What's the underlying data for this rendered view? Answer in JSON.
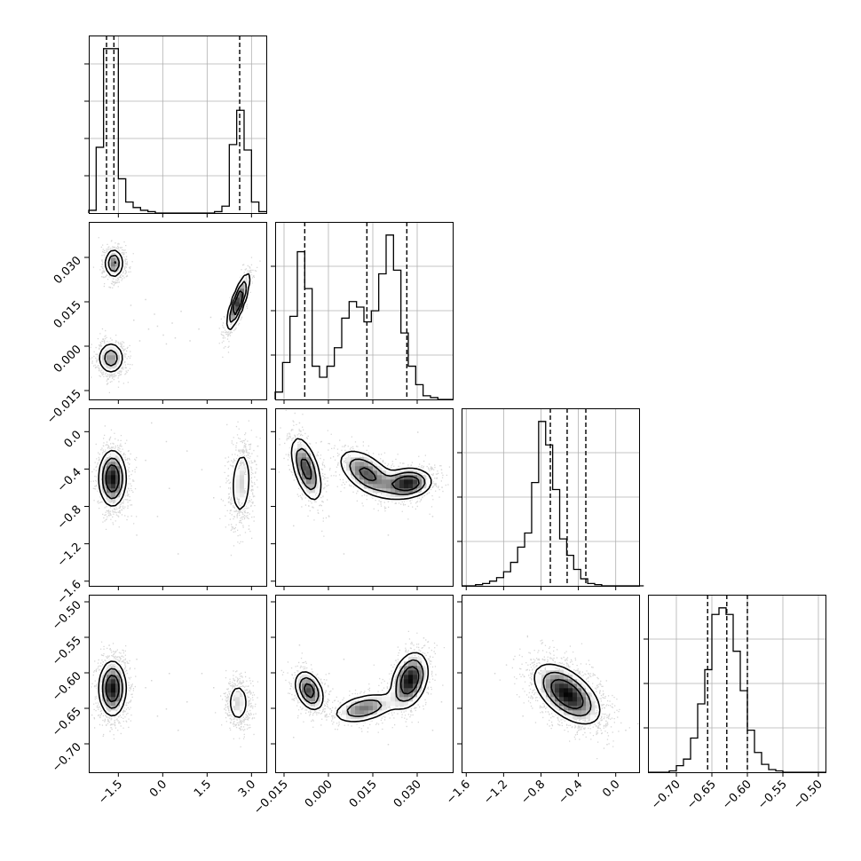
{
  "figure": {
    "type": "corner_plot",
    "n_params": 4,
    "background": "#ffffff"
  },
  "chart_data": [
    {
      "type": "histogram",
      "param": 0,
      "xlim": [
        -2.5,
        3.5
      ],
      "bins": {
        "start": -2.5,
        "width": 0.25,
        "counts": [
          2,
          48,
          120,
          120,
          25,
          8,
          4,
          2,
          1,
          0,
          0,
          0,
          0,
          0,
          0,
          0,
          0,
          1,
          5,
          50,
          75,
          46,
          8,
          1
        ]
      },
      "quantile_lines": [
        -1.9,
        -1.65,
        2.6
      ],
      "x_ticks": [
        -1.5,
        0.0,
        1.5,
        3.0
      ],
      "x_tick_labels": [
        "−1.5",
        "0.0",
        "1.5",
        "3.0"
      ],
      "y_tick_fracs": [
        0.21,
        0.42,
        0.63,
        0.84
      ],
      "grid": true
    },
    {
      "type": "histogram",
      "param": 1,
      "xlim": [
        -0.018,
        0.042
      ],
      "bins": {
        "start": -0.018,
        "width": 0.0025,
        "counts": [
          4,
          20,
          45,
          80,
          60,
          18,
          12,
          18,
          28,
          44,
          53,
          50,
          42,
          48,
          68,
          89,
          70,
          36,
          18,
          8,
          2,
          1,
          0,
          0
        ]
      },
      "quantile_lines": [
        -0.008,
        0.013,
        0.0265
      ],
      "x_ticks": [
        -0.015,
        0.0,
        0.015,
        0.03
      ],
      "x_tick_labels": [
        "−0.015",
        "0.000",
        "0.015",
        "0.030"
      ],
      "y_tick_fracs": [
        0.25,
        0.5,
        0.75
      ],
      "grid": true
    },
    {
      "type": "histogram",
      "param": 2,
      "xlim": [
        -1.65,
        0.25
      ],
      "bins": {
        "start": -1.65,
        "width": 0.075,
        "counts": [
          0,
          0,
          1,
          2,
          4,
          7,
          12,
          20,
          33,
          45,
          88,
          140,
          120,
          82,
          40,
          26,
          14,
          6,
          2,
          1,
          0,
          0,
          0,
          0,
          0,
          0
        ]
      },
      "quantile_lines": [
        -0.7,
        -0.52,
        -0.32
      ],
      "x_ticks": [
        -1.6,
        -1.2,
        -0.8,
        -0.4,
        0.0
      ],
      "x_tick_labels": [
        "−1.6",
        "−1.2",
        "−0.8",
        "−0.4",
        "0.0"
      ],
      "y_tick_fracs": [
        0.25,
        0.5,
        0.75
      ],
      "grid": true
    },
    {
      "type": "histogram",
      "param": 3,
      "xlim": [
        -0.74,
        -0.49
      ],
      "bins": {
        "start": -0.74,
        "width": 0.01,
        "counts": [
          0,
          0,
          0,
          1,
          5,
          10,
          26,
          52,
          78,
          120,
          125,
          120,
          92,
          62,
          32,
          15,
          6,
          2,
          1,
          0,
          0,
          0,
          0,
          0,
          0
        ]
      },
      "quantile_lines": [
        -0.656,
        -0.629,
        -0.6
      ],
      "x_ticks": [
        -0.7,
        -0.65,
        -0.6,
        -0.55,
        -0.5
      ],
      "x_tick_labels": [
        "−0.70",
        "−0.65",
        "−0.60",
        "−0.55",
        "−0.50"
      ],
      "y_tick_fracs": [
        0.25,
        0.5,
        0.75
      ],
      "grid": true
    },
    {
      "type": "scatter_density",
      "x_param": 0,
      "y_param": 1,
      "xlim": [
        -2.5,
        3.5
      ],
      "ylim": [
        -0.018,
        0.042
      ],
      "y_ticks": [
        -0.015,
        0.0,
        0.015,
        0.03
      ],
      "y_tick_labels": [
        "−0.015",
        "0.000",
        "0.015",
        "0.030"
      ],
      "clusters": [
        {
          "center": [
            -1.65,
            0.028
          ],
          "sigma": [
            0.18,
            0.0028
          ],
          "rho": 0.0,
          "weight": 0.38
        },
        {
          "center": [
            -1.75,
            -0.004
          ],
          "sigma": [
            0.26,
            0.0032
          ],
          "rho": 0.0,
          "weight": 0.32
        },
        {
          "center": [
            2.55,
            0.015
          ],
          "sigma": [
            0.22,
            0.0055
          ],
          "rho": 0.82,
          "weight": 0.3
        }
      ],
      "background_points": [
        [
          -0.5,
          0.006
        ],
        [
          0.0,
          0.004
        ],
        [
          0.3,
          0.008
        ],
        [
          -0.8,
          0.002
        ],
        [
          0.6,
          0.012
        ],
        [
          -1.0,
          0.009
        ],
        [
          1.2,
          0.006
        ],
        [
          -0.3,
          0.011
        ],
        [
          0.9,
          0.002
        ],
        [
          -1.1,
          0.014
        ],
        [
          0.1,
          0.001
        ],
        [
          1.6,
          0.01
        ],
        [
          -0.6,
          0.016
        ],
        [
          0.4,
          0.003
        ],
        [
          -0.2,
          0.007
        ]
      ]
    },
    {
      "type": "scatter_density",
      "x_param": 0,
      "y_param": 2,
      "xlim": [
        -2.5,
        3.5
      ],
      "ylim": [
        -1.65,
        0.25
      ],
      "y_ticks": [
        -1.6,
        -1.2,
        -0.8,
        -0.4,
        0.0
      ],
      "y_tick_labels": [
        "−1.6",
        "−1.2",
        "−0.8",
        "−0.4",
        "0.0"
      ],
      "clusters": [
        {
          "center": [
            -1.7,
            -0.5
          ],
          "sigma": [
            0.26,
            0.17
          ],
          "rho": 0.0,
          "weight": 0.7
        },
        {
          "center": [
            2.65,
            -0.55
          ],
          "sigma": [
            0.22,
            0.24
          ],
          "rho": 0.15,
          "weight": 0.3
        }
      ],
      "background_points": [
        [
          -0.6,
          -0.3
        ],
        [
          0.2,
          -0.6
        ],
        [
          0.8,
          -0.2
        ],
        [
          -0.2,
          -0.9
        ],
        [
          1.3,
          -0.4
        ],
        [
          -0.9,
          -1.1
        ],
        [
          0.5,
          -1.3
        ],
        [
          1.7,
          -0.7
        ],
        [
          -0.4,
          0.1
        ],
        [
          0.1,
          -0.1
        ]
      ]
    },
    {
      "type": "scatter_density",
      "x_param": 1,
      "y_param": 2,
      "xlim": [
        -0.018,
        0.042
      ],
      "ylim": [
        -1.65,
        0.25
      ],
      "clusters": [
        {
          "center": [
            -0.0075,
            -0.4
          ],
          "sigma": [
            0.003,
            0.2
          ],
          "rho": -0.55,
          "weight": 0.3
        },
        {
          "center": [
            0.013,
            -0.45
          ],
          "sigma": [
            0.0055,
            0.15
          ],
          "rho": -0.55,
          "weight": 0.28
        },
        {
          "center": [
            0.027,
            -0.55
          ],
          "sigma": [
            0.0045,
            0.09
          ],
          "rho": 0.1,
          "weight": 0.42
        }
      ],
      "background_points": [
        [
          -0.012,
          -1.0
        ],
        [
          0.0,
          -0.9
        ],
        [
          0.02,
          -1.1
        ],
        [
          0.035,
          -0.9
        ],
        [
          -0.01,
          0.1
        ],
        [
          0.005,
          -1.3
        ],
        [
          0.03,
          0.0
        ],
        [
          0.038,
          -0.4
        ]
      ]
    },
    {
      "type": "scatter_density",
      "x_param": 0,
      "y_param": 3,
      "xlim": [
        -2.5,
        3.5
      ],
      "ylim": [
        -0.74,
        -0.49
      ],
      "y_ticks": [
        -0.7,
        -0.65,
        -0.6,
        -0.55,
        -0.5
      ],
      "y_tick_labels": [
        "−0.70",
        "−0.65",
        "−0.60",
        "−0.55",
        "−0.50"
      ],
      "clusters": [
        {
          "center": [
            -1.7,
            -0.622
          ],
          "sigma": [
            0.26,
            0.022
          ],
          "rho": 0.0,
          "weight": 0.7
        },
        {
          "center": [
            2.55,
            -0.642
          ],
          "sigma": [
            0.22,
            0.018
          ],
          "rho": 0.0,
          "weight": 0.3
        }
      ],
      "background_points": [
        [
          -0.6,
          -0.62
        ],
        [
          0.2,
          -0.6
        ],
        [
          0.8,
          -0.64
        ],
        [
          -0.2,
          -0.66
        ],
        [
          1.3,
          -0.6
        ],
        [
          -0.9,
          -0.58
        ],
        [
          0.5,
          -0.68
        ],
        [
          1.7,
          -0.62
        ],
        [
          -0.4,
          -0.61
        ],
        [
          0.1,
          -0.65
        ]
      ]
    },
    {
      "type": "scatter_density",
      "x_param": 1,
      "y_param": 3,
      "xlim": [
        -0.018,
        0.042
      ],
      "ylim": [
        -0.74,
        -0.49
      ],
      "clusters": [
        {
          "center": [
            -0.0065,
            -0.625
          ],
          "sigma": [
            0.0028,
            0.016
          ],
          "rho": -0.35,
          "weight": 0.33
        },
        {
          "center": [
            0.012,
            -0.65
          ],
          "sigma": [
            0.006,
            0.012
          ],
          "rho": 0.4,
          "weight": 0.27
        },
        {
          "center": [
            0.0275,
            -0.61
          ],
          "sigma": [
            0.0035,
            0.022
          ],
          "rho": 0.3,
          "weight": 0.4
        }
      ],
      "background_points": [
        [
          -0.012,
          -0.69
        ],
        [
          0.0,
          -0.6
        ],
        [
          0.02,
          -0.7
        ],
        [
          0.035,
          -0.68
        ],
        [
          -0.01,
          -0.56
        ],
        [
          0.005,
          -0.58
        ],
        [
          0.032,
          -0.55
        ],
        [
          0.038,
          -0.64
        ]
      ]
    },
    {
      "type": "scatter_density",
      "x_param": 2,
      "y_param": 3,
      "xlim": [
        -1.65,
        0.25
      ],
      "ylim": [
        -0.74,
        -0.49
      ],
      "clusters": [
        {
          "center": [
            -0.52,
            -0.63
          ],
          "sigma": [
            0.2,
            0.024
          ],
          "rho": -0.55,
          "weight": 1.0
        }
      ],
      "background_points": [
        [
          -1.3,
          -0.6
        ],
        [
          -1.1,
          -0.58
        ],
        [
          -0.1,
          -0.7
        ],
        [
          0.1,
          -0.68
        ],
        [
          -1.0,
          -0.66
        ]
      ]
    }
  ]
}
